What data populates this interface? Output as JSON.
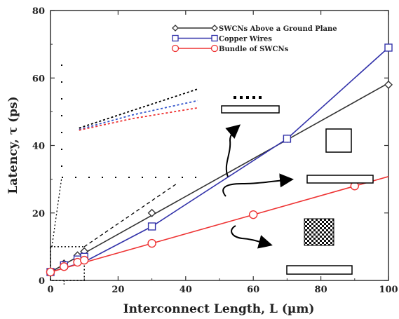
{
  "chart_data": {
    "type": "line",
    "xlabel": "Interconnect Length, L (µm)",
    "ylabel": "Latency, τ (ps)",
    "xlim": [
      0,
      100
    ],
    "ylim": [
      0,
      80
    ],
    "xticks": [
      "0",
      "20",
      "40",
      "60",
      "80",
      "100"
    ],
    "yticks": [
      "0",
      "20",
      "40",
      "60",
      "80"
    ],
    "grid": false,
    "legend_position": "top-right",
    "series": [
      {
        "name": "SWCNs Above a Ground Plane",
        "color": "#333333",
        "marker": "diamond",
        "x": [
          0,
          1,
          2,
          3,
          4,
          5,
          6,
          7,
          8,
          9,
          10,
          30,
          70,
          100
        ],
        "y": [
          2.5,
          3.2,
          3.8,
          4.4,
          5.0,
          5.6,
          6.2,
          6.8,
          7.4,
          8.0,
          8.6,
          20.0,
          42.0,
          58.0
        ],
        "line_x": [
          0,
          100
        ],
        "line_y": [
          2.5,
          58.5
        ]
      },
      {
        "name": "Copper Wires",
        "color": "#3333aa",
        "marker": "square",
        "x": [
          0,
          1,
          2,
          3,
          4,
          5,
          6,
          7,
          8,
          9,
          10,
          30,
          70,
          100
        ],
        "y": [
          2.5,
          3.0,
          3.5,
          4.0,
          4.5,
          5.0,
          5.4,
          5.8,
          6.2,
          6.6,
          7.0,
          16.0,
          42.0,
          69.0
        ],
        "line_x": [
          0,
          10,
          30,
          70,
          100
        ],
        "line_y": [
          2.5,
          5.5,
          16.0,
          42.0,
          69.0
        ]
      },
      {
        "name": "Bundle of SWCNs",
        "color": "#ee3333",
        "marker": "circle",
        "x": [
          0,
          1,
          2,
          3,
          4,
          5,
          6,
          7,
          8,
          9,
          10,
          30,
          60,
          90
        ],
        "y": [
          2.5,
          2.9,
          3.3,
          3.7,
          4.1,
          4.5,
          4.8,
          5.1,
          5.4,
          5.7,
          6.0,
          11.0,
          19.5,
          28.0
        ],
        "line_x": [
          0,
          100
        ],
        "line_y": [
          2.5,
          30.8
        ]
      }
    ],
    "inset": {
      "description_free": true,
      "zoom_xlim": [
        0,
        10
      ],
      "zoom_ylim": [
        0,
        10
      ]
    }
  }
}
